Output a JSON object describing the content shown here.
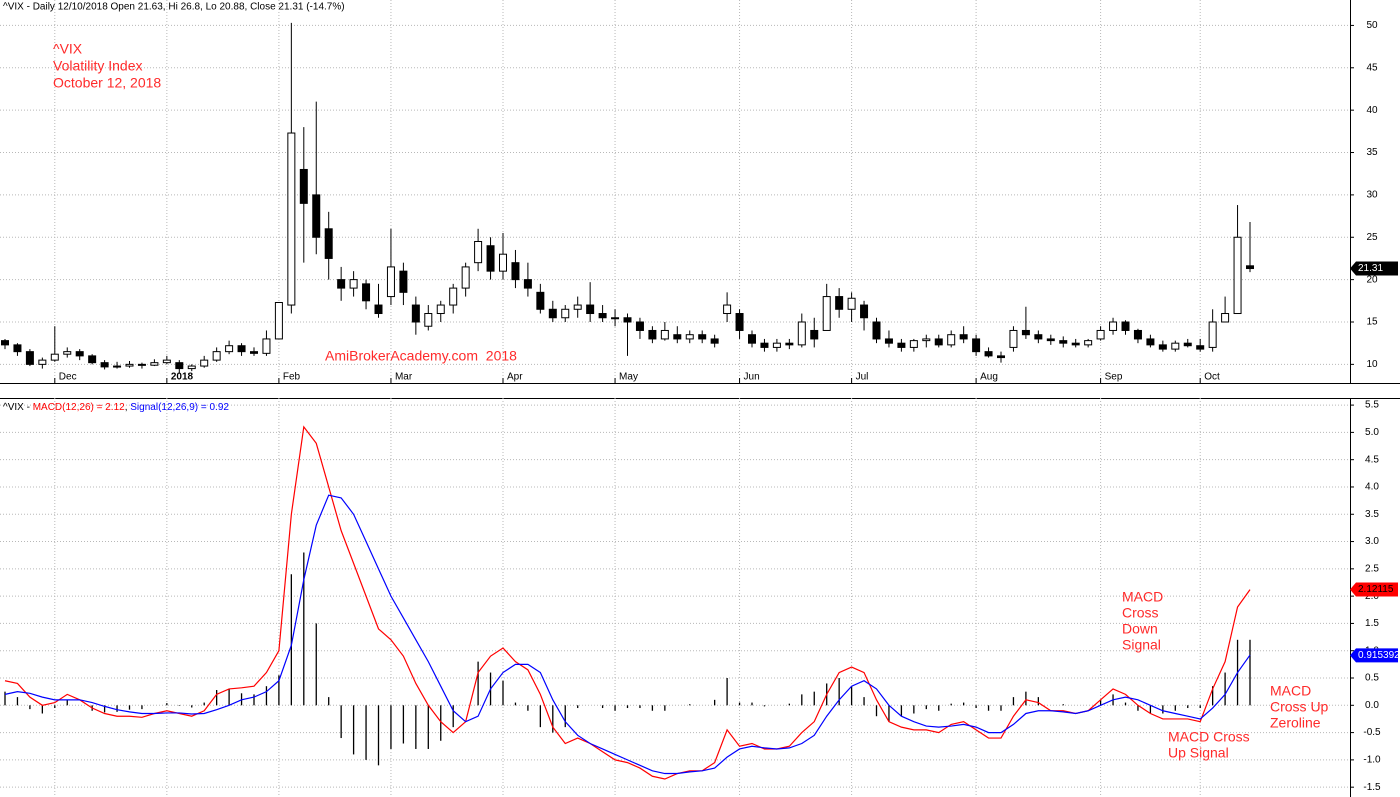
{
  "chart_data": [
    {
      "type": "candlestick",
      "title": "^VIX - Daily 12/10/2018 Open 21.63, Hi 26.8, Lo 20.88, Close 21.31 (-14.7%)",
      "annotations": [
        [
          "^VIX",
          "Volatility Index",
          "October 12, 2018"
        ]
      ],
      "watermark": "AmiBrokerAcademy.com  2018",
      "xticks": [
        {
          "value": 4,
          "label": "Dec"
        },
        {
          "value": 13,
          "label": "2018"
        },
        {
          "value": 22,
          "label": "Feb"
        },
        {
          "value": 31,
          "label": "Mar"
        },
        {
          "value": 40,
          "label": "Apr"
        },
        {
          "value": 49,
          "label": "May"
        },
        {
          "value": 59,
          "label": "Jun"
        },
        {
          "value": 68,
          "label": "Jul"
        },
        {
          "value": 78,
          "label": "Aug"
        },
        {
          "value": 88,
          "label": "Sep"
        },
        {
          "value": 96,
          "label": "Oct"
        }
      ],
      "ylim": [
        7.8,
        53
      ],
      "yticks": [
        10,
        15,
        20,
        25,
        30,
        35,
        40,
        45,
        50
      ],
      "grid": true,
      "up_color": "#ffffff",
      "down_color": "#000000",
      "open": [
        12.8,
        12.3,
        11.5,
        10,
        10.5,
        11.2,
        11.5,
        11,
        10.2,
        9.7,
        9.8,
        10,
        9.9,
        10.2,
        10.2,
        9.5,
        9.8,
        10.5,
        11.5,
        12.2,
        11.5,
        11.3,
        13,
        17,
        33,
        30,
        26,
        20,
        19,
        19.5,
        17,
        18,
        21,
        17,
        14.5,
        16,
        17,
        19,
        22,
        24,
        21,
        22,
        20,
        18.5,
        16.5,
        15.5,
        16.5,
        17,
        16,
        15.5,
        15.5,
        15,
        14,
        13,
        13.5,
        13,
        13.5,
        13,
        16,
        16,
        13.5,
        12.5,
        12,
        12.5,
        12.3,
        14,
        14,
        18,
        16.5,
        17,
        15,
        13,
        12.5,
        12,
        12.8,
        13,
        12.3,
        13.5,
        13,
        11.5,
        11,
        12,
        14,
        13.5,
        13,
        12.8,
        12.5,
        12.3,
        13,
        14,
        15,
        14,
        13,
        12.3,
        11.8,
        12.5,
        12.2,
        12,
        15,
        16,
        21.63
      ],
      "high": [
        13,
        12.5,
        11.8,
        10.8,
        14.5,
        12,
        11.8,
        11.2,
        10.5,
        10.3,
        10.4,
        10.2,
        10.6,
        11,
        10.5,
        10,
        11,
        12,
        12.8,
        12.5,
        12,
        14,
        17.3,
        50.3,
        38,
        41,
        28,
        21.5,
        21,
        20,
        19.5,
        26,
        22,
        18,
        17,
        17.5,
        19.5,
        22,
        26,
        25,
        25.5,
        23.5,
        22,
        19.5,
        17.5,
        17,
        18,
        19.7,
        17,
        16.5,
        16,
        15.5,
        14.5,
        15,
        14.5,
        14,
        14,
        13.5,
        18.5,
        16.5,
        14,
        13,
        13,
        13,
        16,
        15.5,
        19.5,
        19,
        18.5,
        17.5,
        15.5,
        14,
        13,
        13,
        13.5,
        13.5,
        14,
        14.5,
        13.5,
        12,
        11.5,
        14.5,
        16.8,
        14,
        13.5,
        13.3,
        13,
        13,
        14.5,
        15.5,
        15.2,
        14.2,
        13.5,
        12.8,
        12.8,
        13,
        13,
        16.5,
        18,
        28.8,
        26.8
      ],
      "low": [
        11.8,
        11,
        9.8,
        9.5,
        10.3,
        10.8,
        10.5,
        10,
        9.4,
        9.5,
        9.6,
        9.5,
        9.8,
        10,
        9,
        9.2,
        9.6,
        10.3,
        11.2,
        11,
        11,
        11,
        13,
        16,
        22,
        23,
        20,
        17.5,
        18,
        16.5,
        15.5,
        17,
        17,
        13.5,
        14,
        15,
        16,
        18,
        21,
        20,
        20,
        19,
        18,
        16,
        15,
        15,
        15.5,
        15,
        15,
        14.5,
        11,
        13,
        12.5,
        12.8,
        12.5,
        12.5,
        12.5,
        12,
        15,
        13,
        12,
        11.5,
        11.5,
        11.8,
        12,
        12,
        14,
        15.5,
        15,
        14,
        12.5,
        12,
        11.5,
        11.5,
        12,
        12,
        12,
        12.5,
        11,
        10.8,
        10.2,
        11.5,
        13,
        12.5,
        12.3,
        12,
        12,
        12,
        12.8,
        13.5,
        13.5,
        12.5,
        12,
        11.5,
        11.5,
        12,
        11.5,
        11.5,
        15,
        16,
        20.88
      ],
      "close": [
        12.3,
        11.5,
        10,
        10.5,
        11.2,
        11.5,
        11,
        10.2,
        9.7,
        9.8,
        10,
        9.9,
        10.2,
        10.5,
        9.5,
        9.8,
        10.5,
        11.5,
        12.2,
        11.5,
        11.3,
        13,
        17.3,
        37.3,
        29,
        25,
        22.5,
        19,
        20,
        17.5,
        16,
        21.5,
        18.5,
        15,
        16,
        17,
        19,
        21.5,
        24.5,
        21,
        23,
        20,
        19,
        16.5,
        15.5,
        16.5,
        17,
        16,
        15.5,
        15.5,
        15,
        14,
        13,
        14,
        13,
        13.5,
        13,
        12.5,
        17,
        14,
        12.5,
        12,
        12.5,
        12.3,
        15,
        13,
        18,
        16.5,
        17.8,
        15.5,
        13,
        12.5,
        12,
        12.8,
        13,
        12.3,
        13.5,
        13,
        11.5,
        11,
        10.8,
        14,
        13.5,
        13,
        12.8,
        12.5,
        12.3,
        12.8,
        14,
        15,
        14,
        13,
        12.3,
        11.8,
        12.5,
        12.2,
        11.8,
        15,
        16,
        25,
        21.31
      ],
      "price_tag": {
        "value": 21.31,
        "label": "21.31"
      }
    },
    {
      "type": "macd",
      "title_parts": [
        "^VIX - ",
        "MACD(12,26) = 2.12",
        ", ",
        "Signal(12,26,9) = 0.92"
      ],
      "annotations": [
        [
          "MACD",
          "Cross",
          "Down",
          "Signal"
        ],
        [
          "MACD Cross",
          "Up Signal"
        ],
        [
          "MACD",
          "Cross Up",
          "Zeroline"
        ]
      ],
      "ylim": [
        -1.68,
        5.63
      ],
      "yticks": [
        -1.5,
        {
          "value": -1,
          "label": "-1.0"
        },
        -0.5,
        {
          "value": 0,
          "label": "0.0"
        },
        0.5,
        {
          "value": 1,
          "label": "1.0"
        },
        1.5,
        {
          "value": 2,
          "label": "2.0"
        },
        2.5,
        {
          "value": 3,
          "label": "3.0"
        },
        3.5,
        {
          "value": 4,
          "label": "4.0"
        },
        4.5,
        {
          "value": 5,
          "label": "5.0"
        },
        5.5
      ],
      "grid": true,
      "series": [
        {
          "color": "#ff0000",
          "tag": {
            "value": 2.12115,
            "label": "2.12115"
          },
          "values": [
            0.45,
            0.4,
            0.15,
            0.0,
            0.05,
            0.2,
            0.1,
            -0.05,
            -0.15,
            -0.2,
            -0.2,
            -0.22,
            -0.15,
            -0.1,
            -0.15,
            -0.2,
            -0.1,
            0.2,
            0.3,
            0.32,
            0.35,
            0.6,
            1.0,
            3.5,
            5.1,
            4.8,
            4.0,
            3.2,
            2.6,
            2.0,
            1.4,
            1.2,
            0.9,
            0.4,
            0.0,
            -0.3,
            -0.5,
            -0.3,
            0.6,
            0.9,
            1.05,
            0.8,
            0.65,
            0.2,
            -0.4,
            -0.7,
            -0.6,
            -0.7,
            -0.85,
            -1.0,
            -1.05,
            -1.15,
            -1.3,
            -1.35,
            -1.25,
            -1.2,
            -1.2,
            -1.05,
            -0.45,
            -0.75,
            -0.7,
            -0.8,
            -0.8,
            -0.75,
            -0.5,
            -0.3,
            0.2,
            0.6,
            0.7,
            0.6,
            0.1,
            -0.3,
            -0.4,
            -0.45,
            -0.45,
            -0.5,
            -0.35,
            -0.3,
            -0.45,
            -0.6,
            -0.6,
            -0.2,
            0.1,
            0.05,
            -0.1,
            -0.1,
            -0.15,
            -0.1,
            0.1,
            0.3,
            0.2,
            0.0,
            -0.15,
            -0.25,
            -0.25,
            -0.25,
            -0.3,
            0.3,
            0.8,
            1.8,
            2.12
          ]
        },
        {
          "color": "#0000ff",
          "tag": {
            "value": 0.915392,
            "label": "0.915392"
          },
          "values": [
            0.2,
            0.25,
            0.22,
            0.15,
            0.1,
            0.1,
            0.1,
            0.05,
            -0.02,
            -0.08,
            -0.12,
            -0.15,
            -0.15,
            -0.14,
            -0.14,
            -0.16,
            -0.15,
            -0.08,
            0.0,
            0.1,
            0.15,
            0.25,
            0.45,
            1.1,
            2.3,
            3.3,
            3.85,
            3.8,
            3.5,
            3.0,
            2.5,
            2.0,
            1.6,
            1.2,
            0.8,
            0.35,
            -0.1,
            -0.3,
            -0.2,
            0.3,
            0.6,
            0.75,
            0.75,
            0.6,
            0.1,
            -0.3,
            -0.55,
            -0.7,
            -0.8,
            -0.9,
            -1.0,
            -1.1,
            -1.2,
            -1.25,
            -1.25,
            -1.22,
            -1.2,
            -1.15,
            -0.95,
            -0.8,
            -0.75,
            -0.78,
            -0.8,
            -0.78,
            -0.7,
            -0.55,
            -0.2,
            0.1,
            0.35,
            0.45,
            0.3,
            0.0,
            -0.2,
            -0.3,
            -0.38,
            -0.4,
            -0.38,
            -0.35,
            -0.4,
            -0.5,
            -0.5,
            -0.35,
            -0.15,
            -0.1,
            -0.1,
            -0.12,
            -0.15,
            -0.1,
            0.0,
            0.1,
            0.15,
            0.1,
            0.0,
            -0.1,
            -0.15,
            -0.2,
            -0.25,
            -0.05,
            0.2,
            0.6,
            0.92
          ]
        },
        {
          "kind": "bar",
          "color": "#000000",
          "values": [
            0.25,
            0.15,
            -0.07,
            -0.15,
            -0.05,
            0.1,
            0,
            -0.1,
            -0.13,
            -0.12,
            -0.08,
            -0.07,
            0,
            0.04,
            -0.01,
            -0.04,
            0.05,
            0.28,
            0.3,
            0.22,
            0.2,
            0.35,
            0.55,
            2.4,
            2.8,
            1.5,
            0.15,
            -0.6,
            -0.9,
            -1.0,
            -1.1,
            -0.8,
            -0.7,
            -0.8,
            -0.8,
            -0.65,
            -0.4,
            0,
            0.8,
            0.6,
            0.45,
            0.05,
            -0.1,
            -0.4,
            -0.5,
            -0.4,
            -0.05,
            0,
            -0.05,
            -0.1,
            -0.05,
            -0.05,
            -0.1,
            -0.1,
            0,
            0.02,
            0,
            0.1,
            0.5,
            0.05,
            0.05,
            -0.02,
            0,
            0.03,
            0.2,
            0.25,
            0.4,
            0.5,
            0.35,
            0.15,
            -0.2,
            -0.3,
            -0.2,
            -0.15,
            -0.07,
            -0.1,
            0.03,
            0.05,
            -0.05,
            -0.1,
            -0.1,
            0.15,
            0.25,
            0.15,
            0,
            0.02,
            0,
            0,
            0.1,
            0.2,
            0.05,
            -0.1,
            -0.15,
            -0.15,
            -0.1,
            -0.05,
            -0.05,
            0.35,
            0.6,
            1.2,
            1.2
          ]
        }
      ]
    }
  ]
}
